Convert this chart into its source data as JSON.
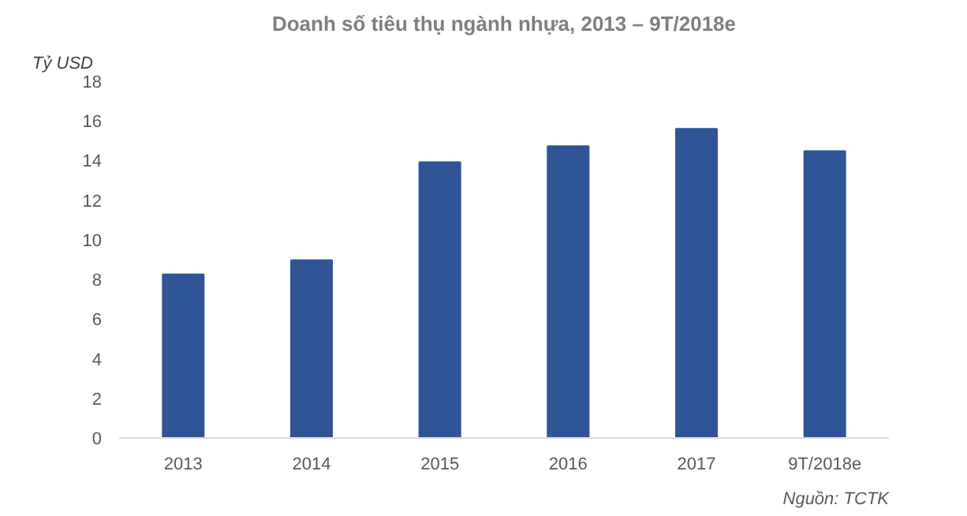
{
  "chart_data": {
    "type": "bar",
    "title": "Doanh số tiêu thụ ngành nhựa, 2013 – 9T/2018e",
    "ylabel": "Tỷ USD",
    "categories": [
      "2013",
      "2014",
      "2015",
      "2016",
      "2017",
      "9T/2018e"
    ],
    "values": [
      8.25,
      8.97,
      13.92,
      14.72,
      15.6,
      14.48
    ],
    "color": "#2f5597",
    "ylim": [
      0,
      18
    ],
    "yticks": [
      0,
      2,
      4,
      6,
      8,
      10,
      12,
      14,
      16,
      18
    ],
    "grid": false,
    "annotations": [
      "Nguồn: TCTK"
    ]
  }
}
